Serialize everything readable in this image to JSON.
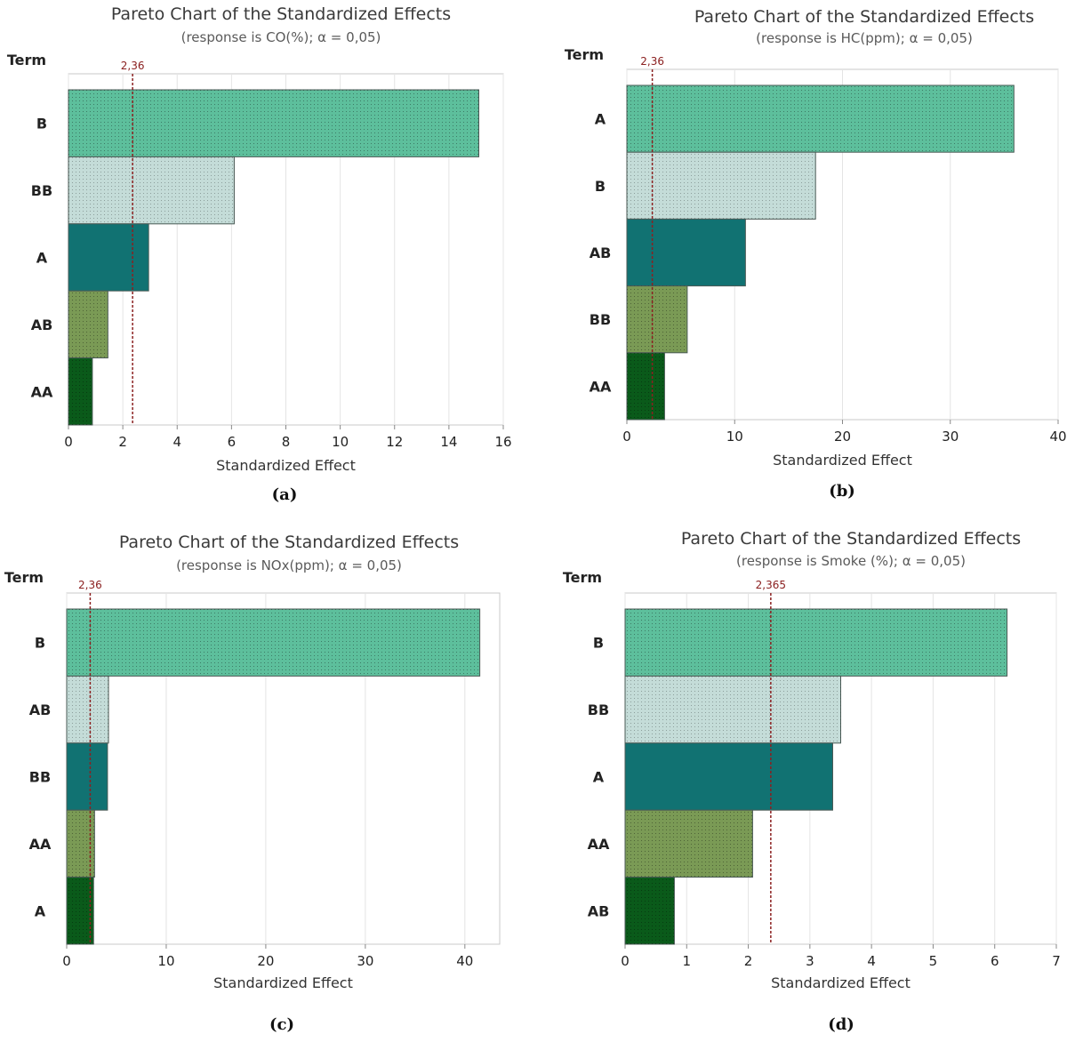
{
  "chart_data": [
    {
      "type": "bar",
      "orientation": "horizontal",
      "title": "Pareto Chart of the Standardized Effects",
      "subtitle": "(response is CO(%); α = 0,05)",
      "term_label": "Term",
      "xlabel": "Standardized Effect",
      "panel_label": "(a)",
      "categories": [
        "B",
        "BB",
        "A",
        "AB",
        "AA"
      ],
      "values": [
        15.1,
        6.1,
        2.95,
        1.45,
        0.88
      ],
      "reference_value": 2.36,
      "reference_label": "2,36",
      "xlim": [
        0,
        16
      ],
      "xticks": [
        0,
        2,
        4,
        6,
        8,
        10,
        12,
        14,
        16
      ],
      "grid": true
    },
    {
      "type": "bar",
      "orientation": "horizontal",
      "title": "Pareto Chart of the Standardized Effects",
      "subtitle": "(response is HC(ppm); α = 0,05)",
      "term_label": "Term",
      "xlabel": "Standardized Effect",
      "panel_label": "(b)",
      "categories": [
        "A",
        "B",
        "AB",
        "BB",
        "AA"
      ],
      "values": [
        35.9,
        17.5,
        11.0,
        5.6,
        3.5
      ],
      "reference_value": 2.36,
      "reference_label": "2,36",
      "xlim": [
        0,
        40
      ],
      "xticks": [
        0,
        10,
        20,
        30,
        40
      ],
      "grid": true
    },
    {
      "type": "bar",
      "orientation": "horizontal",
      "title": "Pareto Chart of the Standardized Effects",
      "subtitle": "(response is NOx(ppm); α = 0,05)",
      "term_label": "Term",
      "xlabel": "Standardized Effect",
      "panel_label": "(c)",
      "categories": [
        "B",
        "AB",
        "BB",
        "AA",
        "A"
      ],
      "values": [
        41.5,
        4.2,
        4.1,
        2.8,
        2.7
      ],
      "reference_value": 2.36,
      "reference_label": "2,36",
      "xlim": [
        0,
        43.5
      ],
      "xticks": [
        0,
        10,
        20,
        30,
        40
      ],
      "grid": true
    },
    {
      "type": "bar",
      "orientation": "horizontal",
      "title": "Pareto Chart of the Standardized Effects",
      "subtitle": "(response is Smoke (%); α = 0,05)",
      "term_label": "Term",
      "xlabel": "Standardized Effect",
      "panel_label": "(d)",
      "categories": [
        "B",
        "BB",
        "A",
        "AA",
        "AB"
      ],
      "values": [
        6.2,
        3.5,
        3.37,
        2.07,
        0.8
      ],
      "reference_value": 2.365,
      "reference_label": "2,365",
      "xlim": [
        0,
        7
      ],
      "xticks": [
        0,
        1,
        2,
        3,
        4,
        5,
        6,
        7
      ],
      "grid": true
    }
  ],
  "colors": {
    "bar_fills": [
      "#5dbf9c",
      "#c4dcd8",
      "#117272",
      "#7a9a55",
      "#0a5a1a"
    ],
    "reference_line": "#8b2020",
    "grid": "#e4e4e4",
    "frame": "#c8c8c8"
  }
}
